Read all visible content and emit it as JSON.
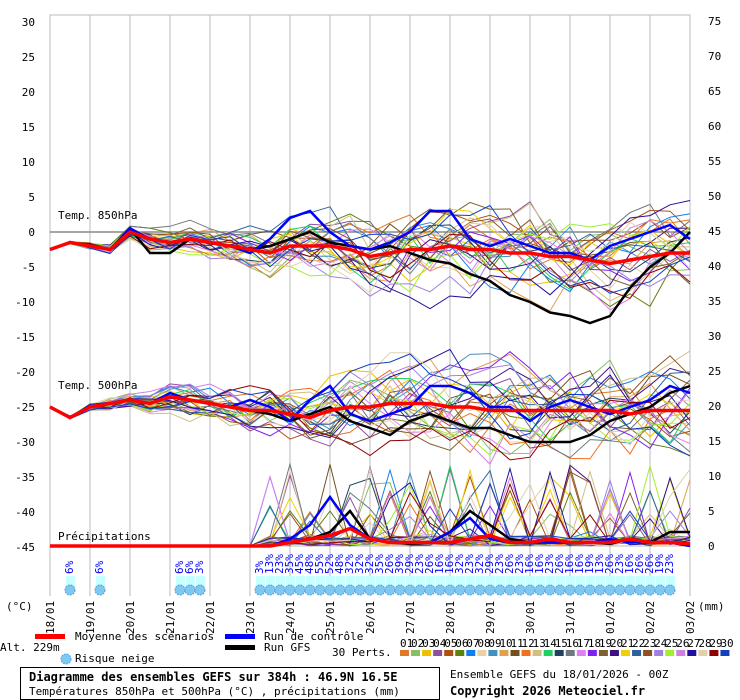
{
  "chart_data": {
    "type": "line",
    "title": "Diagramme des ensembles GEFS sur 384h : 46.9N 16.5E",
    "subtitle": "Températures 850hPa et 500hPa (°C) , précipitations (mm)",
    "run_info": "Ensemble GEFS du 18/01/2026 - 00Z",
    "copyright": "Copyright 2026 Meteociel.fr",
    "left_axis": {
      "unit": "(°C)",
      "ylim": [
        -45,
        30
      ],
      "ticks": [
        30,
        25,
        20,
        15,
        10,
        5,
        0,
        -5,
        -10,
        -15,
        -20,
        -25,
        -30,
        -35,
        -40,
        -45
      ]
    },
    "right_axis": {
      "unit": "(mm)",
      "ylim": [
        0,
        75
      ],
      "ticks": [
        75,
        70,
        65,
        60,
        55,
        50,
        45,
        40,
        35,
        30,
        25,
        20,
        15,
        10,
        5,
        0
      ]
    },
    "x_labels": [
      "18/01",
      "19/01",
      "20/01",
      "21/01",
      "22/01",
      "23/01",
      "24/01",
      "25/01",
      "26/01",
      "27/01",
      "28/01",
      "29/01",
      "30/01",
      "31/01",
      "01/02",
      "02/02",
      "03/02"
    ],
    "altitude": "Alt. 229m",
    "panel_labels": {
      "t850": "Temp. 850hPa",
      "t500": "Temp. 500hPa",
      "precip": "Précipitations"
    },
    "days": [
      0,
      0.5,
      1,
      1.5,
      2,
      2.5,
      3,
      3.5,
      4,
      4.5,
      5,
      5.5,
      6,
      6.5,
      7,
      7.5,
      8,
      8.5,
      9,
      9.5,
      10,
      10.5,
      11,
      11.5,
      12,
      12.5,
      13,
      13.5,
      14,
      14.5,
      15,
      15.5,
      16
    ],
    "series": [
      {
        "name": "Moyenne des scénarios",
        "color": "#ff0000",
        "t850": [
          -2.5,
          -1.5,
          -2,
          -2.5,
          0,
          -1,
          -1.5,
          -1,
          -1.5,
          -2,
          -2.5,
          -3,
          -2,
          -2,
          -2,
          -2.5,
          -3.5,
          -3,
          -2.5,
          -2.5,
          -2,
          -2.5,
          -2.5,
          -3,
          -3,
          -3.5,
          -3.5,
          -4,
          -4.5,
          -4,
          -3.5,
          -3,
          -3
        ],
        "t500": [
          -25,
          -26.5,
          -25,
          -24.5,
          -24,
          -24.5,
          -23.5,
          -24,
          -24.5,
          -25,
          -25.5,
          -25.5,
          -26,
          -26.5,
          -25.5,
          -25,
          -25,
          -24.5,
          -24.5,
          -24.5,
          -25,
          -25,
          -25.5,
          -25.5,
          -25.5,
          -25.5,
          -25.5,
          -25.5,
          -25.5,
          -26,
          -25.5,
          -25.5,
          -25.5
        ],
        "precip": [
          0,
          0,
          0,
          0,
          0,
          0,
          0,
          0,
          0,
          0,
          0,
          0,
          0.5,
          1,
          1.5,
          2.5,
          1,
          0.5,
          0.5,
          0.5,
          0.5,
          1,
          1.5,
          0.5,
          0.5,
          1,
          0.5,
          0.5,
          0.5,
          1,
          0.5,
          0.5,
          0.3
        ]
      },
      {
        "name": "Run de contrôle",
        "color": "#0000ff",
        "t850": [
          -2.5,
          -1.5,
          -2,
          -2.5,
          0.5,
          -1,
          -1.5,
          -1,
          -1.5,
          -2,
          -3,
          -1,
          2,
          3,
          0,
          -2,
          -2.5,
          -1.5,
          0,
          3,
          3,
          -1,
          -2,
          -1,
          -2,
          -3,
          -3,
          -4,
          -2,
          -1,
          0,
          1,
          -1
        ],
        "t500": [
          -25,
          -26.5,
          -25,
          -24.5,
          -24,
          -24.5,
          -23,
          -24,
          -24.5,
          -25,
          -24,
          -25,
          -27,
          -24,
          -22,
          -26,
          -27,
          -26,
          -25,
          -22,
          -22,
          -23,
          -25,
          -25,
          -27,
          -25,
          -24,
          -25,
          -26,
          -25,
          -24,
          -22,
          -23
        ],
        "precip": [
          0,
          0,
          0,
          0,
          0,
          0,
          0,
          0,
          0,
          0,
          0,
          0,
          1,
          3,
          7,
          3,
          1,
          0.5,
          0.5,
          0.5,
          2,
          4,
          1,
          0.5,
          0.5,
          0.5,
          0.5,
          0.5,
          1,
          0.5,
          0.5,
          0.5,
          0
        ]
      },
      {
        "name": "Run GFS",
        "color": "#000000",
        "t850": [
          -2.5,
          -1.5,
          -2,
          -2.5,
          0.5,
          -3,
          -3,
          -1,
          -1.5,
          -2,
          -2.5,
          -2,
          -1,
          0,
          -1.5,
          -2,
          -2.5,
          -2,
          -3,
          -4,
          -4.5,
          -6,
          -7,
          -9,
          -10,
          -11.5,
          -12,
          -13,
          -12,
          -8,
          -5,
          -3,
          0
        ],
        "t500": [
          -25,
          -26.5,
          -25,
          -24.5,
          -24,
          -24.5,
          -23.5,
          -24,
          -24.5,
          -25,
          -25.5,
          -26,
          -27,
          -26,
          -25,
          -27,
          -28,
          -29,
          -27,
          -26,
          -27,
          -28,
          -28,
          -29,
          -30,
          -30,
          -30,
          -29,
          -27,
          -26,
          -25,
          -23,
          -22
        ],
        "precip": [
          0,
          0,
          0,
          0,
          0,
          0,
          0,
          0,
          0,
          0,
          0,
          0,
          0.5,
          1,
          2,
          5,
          1,
          0.5,
          0.3,
          0.5,
          2,
          5,
          3,
          1,
          0.5,
          0.5,
          0.5,
          0.5,
          0.3,
          1,
          0.5,
          2,
          2
        ]
      }
    ],
    "perturbations": {
      "count": 30,
      "label": "30 Perts.",
      "seed": 11
    },
    "pert_colors": [
      "#e07828",
      "#88c060",
      "#f0c000",
      "#9050a0",
      "#b05010",
      "#608010",
      "#1080f0",
      "#e8d0a8",
      "#4090c0",
      "#e0a050",
      "#705020",
      "#f07020",
      "#d0c080",
      "#20d060",
      "#204060",
      "#707880",
      "#e080f0",
      "#8020f0",
      "#806030",
      "#401080",
      "#f0d000",
      "#3060a0",
      "#905020",
      "#a080e0",
      "#a0f030",
      "#d080e0",
      "#2010a0",
      "#e0d0b0",
      "#900000",
      "#1040c0"
    ],
    "pert_numbers": [
      "01",
      "02",
      "03",
      "04",
      "05",
      "06",
      "07",
      "08",
      "09",
      "10",
      "11",
      "12",
      "13",
      "14",
      "15",
      "16",
      "17",
      "18",
      "19",
      "20",
      "21",
      "22",
      "23",
      "24",
      "25",
      "26",
      "27",
      "28",
      "29",
      "30"
    ],
    "snow_risk": {
      "label": "Risque neige",
      "entries": [
        {
          "day": 0.5,
          "pct": "6%"
        },
        {
          "day": 1.25,
          "pct": "6%"
        },
        {
          "day": 3.25,
          "pct": "6%"
        },
        {
          "day": 3.5,
          "pct": "6%"
        },
        {
          "day": 3.75,
          "pct": "3%"
        },
        {
          "day": 5.25,
          "pct": "3%"
        },
        {
          "day": 5.5,
          "pct": "13%"
        },
        {
          "day": 5.75,
          "pct": "23%"
        },
        {
          "day": 6,
          "pct": "35%"
        },
        {
          "day": 6.25,
          "pct": "45%"
        },
        {
          "day": 6.5,
          "pct": "48%"
        },
        {
          "day": 6.75,
          "pct": "55%"
        },
        {
          "day": 7,
          "pct": "52%"
        },
        {
          "day": 7.25,
          "pct": "48%"
        },
        {
          "day": 7.5,
          "pct": "32%"
        },
        {
          "day": 7.75,
          "pct": "32%"
        },
        {
          "day": 8,
          "pct": "32%"
        },
        {
          "day": 8.25,
          "pct": "35%"
        },
        {
          "day": 8.5,
          "pct": "26%"
        },
        {
          "day": 8.75,
          "pct": "39%"
        },
        {
          "day": 9,
          "pct": "29%"
        },
        {
          "day": 9.25,
          "pct": "23%"
        },
        {
          "day": 9.5,
          "pct": "26%"
        },
        {
          "day": 9.75,
          "pct": "16%"
        },
        {
          "day": 10,
          "pct": "16%"
        },
        {
          "day": 10.25,
          "pct": "32%"
        },
        {
          "day": 10.5,
          "pct": "23%"
        },
        {
          "day": 10.75,
          "pct": "32%"
        },
        {
          "day": 11,
          "pct": "29%"
        },
        {
          "day": 11.25,
          "pct": "23%"
        },
        {
          "day": 11.5,
          "pct": "26%"
        },
        {
          "day": 11.75,
          "pct": "23%"
        },
        {
          "day": 12,
          "pct": "16%"
        },
        {
          "day": 12.25,
          "pct": "16%"
        },
        {
          "day": 12.5,
          "pct": "23%"
        },
        {
          "day": 12.75,
          "pct": "26%"
        },
        {
          "day": 13,
          "pct": "16%"
        },
        {
          "day": 13.25,
          "pct": "16%"
        },
        {
          "day": 13.5,
          "pct": "19%"
        },
        {
          "day": 13.75,
          "pct": "13%"
        },
        {
          "day": 14,
          "pct": "26%"
        },
        {
          "day": 14.25,
          "pct": "23%"
        },
        {
          "day": 14.5,
          "pct": "16%"
        },
        {
          "day": 14.75,
          "pct": "26%"
        },
        {
          "day": 15,
          "pct": "26%"
        },
        {
          "day": 15.25,
          "pct": "19%"
        },
        {
          "day": 15.5,
          "pct": "23%"
        }
      ]
    }
  }
}
